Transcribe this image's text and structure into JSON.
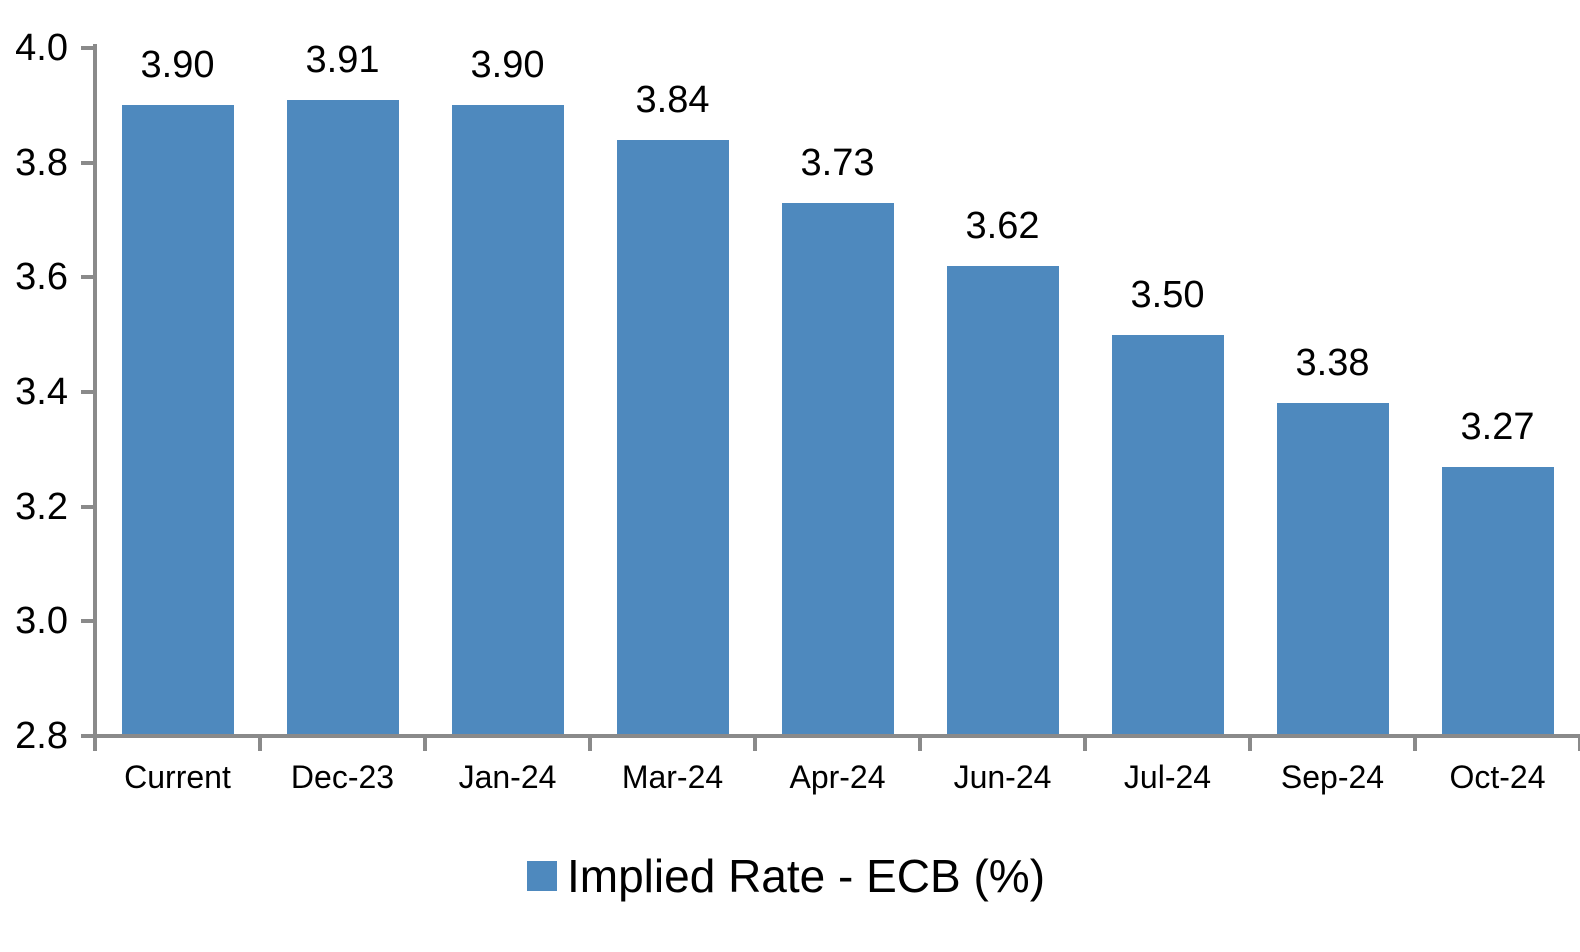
{
  "chart_data": {
    "type": "bar",
    "title": "",
    "xlabel": "",
    "ylabel": "",
    "categories": [
      "Current",
      "Dec-23",
      "Jan-24",
      "Mar-24",
      "Apr-24",
      "Jun-24",
      "Jul-24",
      "Sep-24",
      "Oct-24"
    ],
    "values": [
      3.9,
      3.91,
      3.9,
      3.84,
      3.73,
      3.62,
      3.5,
      3.38,
      3.27
    ],
    "value_labels": [
      "3.90",
      "3.91",
      "3.90",
      "3.84",
      "3.73",
      "3.62",
      "3.50",
      "3.38",
      "3.27"
    ],
    "ylim": [
      2.8,
      4.0
    ],
    "yticks": [
      2.8,
      3.0,
      3.2,
      3.4,
      3.6,
      3.8,
      4.0
    ],
    "ytick_labels": [
      "2.8",
      "3.0",
      "3.2",
      "3.4",
      "3.6",
      "3.8",
      "4.0"
    ],
    "grid": false,
    "legend_position": "bottom",
    "legend": [
      {
        "label": "Implied Rate - ECB (%)",
        "color": "#4E89BE"
      }
    ],
    "colors": {
      "bar": "#4E89BE",
      "axis": "#8A8A8A",
      "text": "#000000",
      "background": "#FFFFFF"
    }
  }
}
